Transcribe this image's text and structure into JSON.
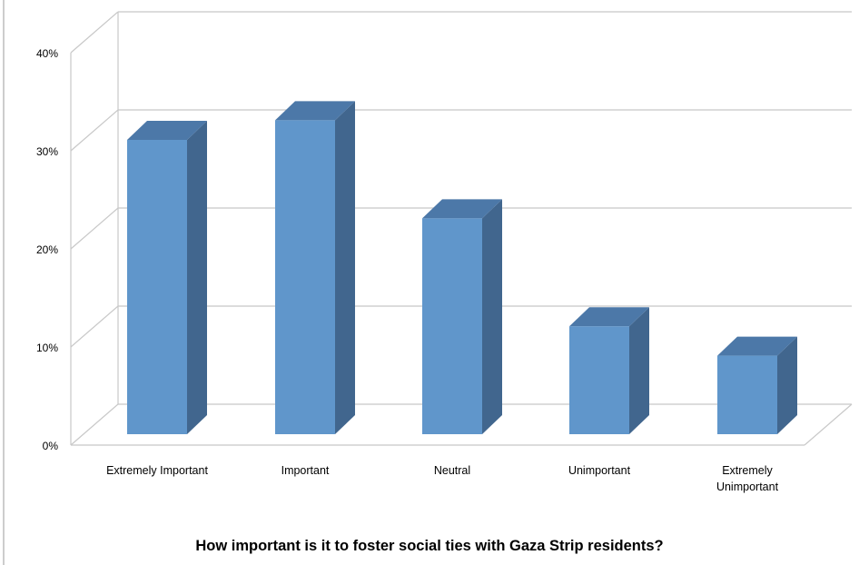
{
  "chart_data": {
    "type": "bar",
    "title": "How important is it to foster social ties with Gaza Strip residents?",
    "categories": [
      "Extremely Important",
      "Important",
      "Neutral",
      "Unimportant",
      "Extremely Unimportant"
    ],
    "category_lines": [
      [
        "Extremely Important"
      ],
      [
        "Important"
      ],
      [
        "Neutral"
      ],
      [
        "Unimportant"
      ],
      [
        "Extremely",
        "Unimportant"
      ]
    ],
    "values": [
      30,
      32,
      22,
      11,
      8
    ],
    "ylim": [
      0,
      40
    ],
    "yticks": [
      0,
      10,
      20,
      30,
      40
    ],
    "ytick_labels": [
      "0%",
      "10%",
      "20%",
      "30%",
      "40%"
    ],
    "grid": true,
    "three_d": true,
    "colors": {
      "bar_front": "#6096CB",
      "bar_side": "#41668E",
      "bar_top": "#4C78A8",
      "grid": "#C8C8C8",
      "frame": "#9B9B9B"
    }
  }
}
